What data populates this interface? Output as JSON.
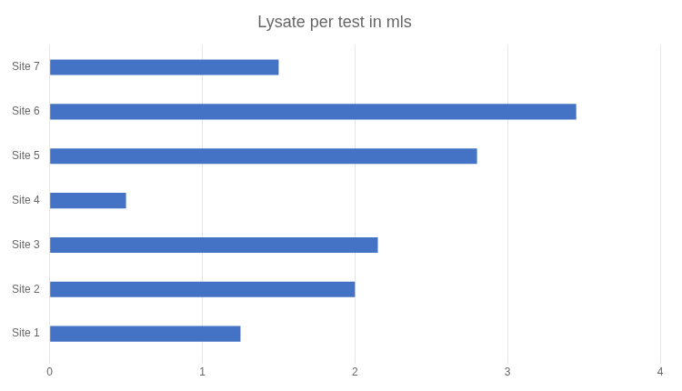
{
  "chart_data": {
    "type": "bar",
    "orientation": "horizontal",
    "title": "Lysate per test in mls",
    "categories": [
      "Site 1",
      "Site 2",
      "Site 3",
      "Site 4",
      "Site 5",
      "Site 6",
      "Site 7"
    ],
    "values": [
      1.25,
      2.0,
      2.15,
      0.5,
      2.8,
      3.45,
      1.5
    ],
    "color": "#4472C4",
    "xlim": [
      0,
      4
    ],
    "xticks": [
      0,
      1,
      2,
      3,
      4
    ],
    "grid": true
  }
}
